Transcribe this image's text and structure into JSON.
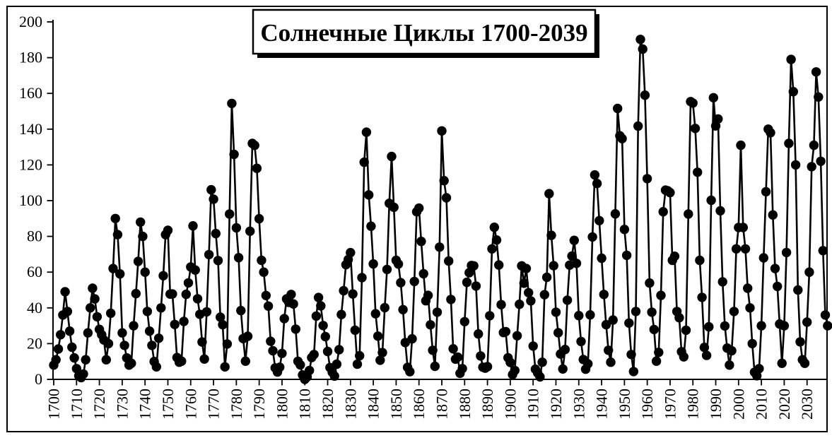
{
  "chart_data": {
    "type": "line",
    "title": "Солнечные Циклы 1700-2039",
    "xlabel": "",
    "ylabel": "",
    "x_start": 1700,
    "x_end": 2039,
    "x_step_years": 1,
    "xlim": [
      1700,
      2040
    ],
    "ylim": [
      0,
      200
    ],
    "y_ticks": [
      0,
      20,
      40,
      60,
      80,
      100,
      120,
      140,
      160,
      180,
      200
    ],
    "x_ticks": [
      1700,
      1710,
      1720,
      1730,
      1740,
      1750,
      1760,
      1770,
      1780,
      1790,
      1800,
      1810,
      1820,
      1830,
      1840,
      1850,
      1860,
      1870,
      1880,
      1890,
      1900,
      1910,
      1920,
      1930,
      1940,
      1950,
      1960,
      1970,
      1980,
      1990,
      2000,
      2010,
      2020,
      2030
    ],
    "grid": false,
    "legend": "none",
    "marker": "filled-circle",
    "series_color": "#000000",
    "background": "#ffffff",
    "values": [
      8,
      11,
      17,
      25,
      36,
      49,
      38,
      27,
      18,
      12,
      6,
      2,
      1,
      3,
      11,
      26,
      40,
      51,
      45,
      35,
      28,
      25,
      22,
      11,
      20,
      37,
      62,
      90,
      81,
      59,
      26,
      19,
      12,
      8,
      9,
      30,
      48,
      66,
      88,
      80,
      60,
      38,
      27,
      19,
      10,
      7,
      23,
      40,
      58,
      81,
      83.4,
      47.7,
      47.8,
      30.7,
      12.2,
      9.6,
      10.2,
      32.4,
      47.6,
      54,
      62.9,
      85.9,
      61.2,
      45.1,
      36.4,
      20.9,
      11.4,
      37.8,
      69.8,
      106.1,
      100.8,
      81.6,
      66.5,
      34.8,
      30.6,
      7,
      19.8,
      92.5,
      154.4,
      125.9,
      84.8,
      68.1,
      38.5,
      22.8,
      10.2,
      24.1,
      82.9,
      132,
      130.9,
      118.1,
      89.9,
      66.6,
      60,
      46.9,
      41,
      21.3,
      16,
      6.4,
      4.1,
      6.8,
      14.5,
      34,
      45,
      43.1,
      47.5,
      42.2,
      28.1,
      10.1,
      8.1,
      2.5,
      0,
      1.4,
      5,
      12.2,
      13.9,
      35.4,
      45.8,
      41.1,
      30.1,
      23.9,
      15.6,
      6.6,
      4,
      1.8,
      8.5,
      16.6,
      36.3,
      49.6,
      64.2,
      67,
      70.9,
      47.8,
      27.5,
      8.5,
      13.2,
      56.9,
      121.5,
      138.3,
      103.2,
      85.7,
      64.6,
      36.7,
      24.2,
      10.7,
      15,
      40.1,
      61.5,
      98.5,
      124.7,
      96.3,
      66.6,
      64.5,
      54.1,
      39,
      20.6,
      6.7,
      4.3,
      22.7,
      54.8,
      93.8,
      95.8,
      77.2,
      59.1,
      44,
      47,
      30.5,
      16.3,
      7.3,
      37.6,
      74,
      139,
      111.2,
      101.6,
      66.2,
      44.7,
      17.1,
      11.3,
      12.4,
      3.4,
      6,
      32.3,
      54.3,
      59.7,
      63.7,
      63.5,
      52.2,
      25.4,
      13.1,
      6.8,
      6.3,
      7.1,
      35.6,
      73,
      85.1,
      78,
      64,
      41.8,
      26.2,
      26.7,
      12.1,
      9.5,
      2.7,
      5,
      24.4,
      42,
      63.5,
      53.8,
      62,
      48.5,
      43.9,
      18.6,
      5.7,
      3.6,
      1.4,
      9.6,
      47.4,
      57.1,
      103.9,
      80.6,
      63.6,
      37.6,
      26.1,
      14.2,
      5.8,
      16.7,
      44.3,
      63.9,
      69,
      77.8,
      64.9,
      35.7,
      21.2,
      11.1,
      5.7,
      8.7,
      36.1,
      79.7,
      114.4,
      109.6,
      88.8,
      67.8,
      47.5,
      30.6,
      16.3,
      9.6,
      33.2,
      92.6,
      151.6,
      136.3,
      134.7,
      83.9,
      69.4,
      31.5,
      13.9,
      4.4,
      38,
      141.7,
      190.2,
      184.8,
      159,
      112.3,
      53.9,
      37.6,
      27.9,
      10.2,
      15.1,
      47,
      93.8,
      105.9,
      105.5,
      104.5,
      66.6,
      68.9,
      38,
      34.5,
      15.5,
      12.6,
      27.5,
      92.5,
      155.4,
      154.6,
      140.4,
      115.9,
      66.6,
      45.9,
      17.9,
      13.4,
      29.4,
      100.2,
      157.6,
      141.8,
      145.7,
      94.3,
      54.6,
      29.9,
      17.5,
      8,
      16,
      38,
      73,
      85,
      131,
      85,
      73,
      51,
      40,
      20,
      4,
      2,
      6,
      30,
      68,
      105,
      140,
      138,
      92,
      62,
      52,
      31,
      9,
      30,
      71,
      132,
      179,
      161,
      120,
      50,
      21,
      11,
      9,
      32,
      60,
      119,
      131,
      172,
      158,
      122,
      72,
      36,
      30
    ]
  }
}
